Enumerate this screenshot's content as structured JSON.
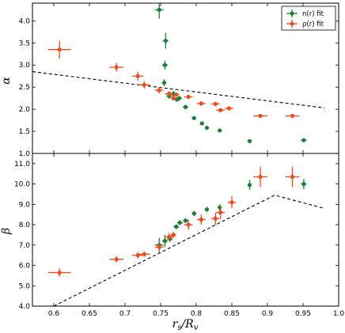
{
  "colors": {
    "n_fit": "#1e7f3a",
    "rho_fit": "#ee4b1f",
    "model": "#000000"
  },
  "chart_data": [
    {
      "type": "scatter",
      "panel": "alpha",
      "ylabel": "α",
      "xlim": [
        0.57,
        1.0
      ],
      "ylim": [
        1.0,
        4.4
      ],
      "grid": false,
      "legend_placement": "top-right",
      "x_ticks": [
        0.6,
        0.65,
        0.7,
        0.75,
        0.8,
        0.85,
        0.9,
        0.95,
        1.0
      ],
      "y_ticks": [
        {
          "value": 1.0,
          "label": "1.0"
        },
        {
          "value": 1.5,
          "label": "1.5"
        },
        {
          "value": 2.0,
          "label": "2.0"
        },
        {
          "value": 2.5,
          "label": "2.5"
        },
        {
          "value": 3.0,
          "label": "3.0"
        },
        {
          "value": 3.5,
          "label": "3.5"
        },
        {
          "value": 4.0,
          "label": "4.0"
        }
      ],
      "series": [
        {
          "name": "n(r) fit",
          "color_key": "n_fit",
          "points": [
            {
              "x": 0.748,
              "y": 4.25,
              "xerr": 0.006,
              "yerr": 0.2
            },
            {
              "x": 0.757,
              "y": 3.55,
              "xerr": 0.004,
              "yerr": 0.18
            },
            {
              "x": 0.756,
              "y": 3.0,
              "xerr": 0.004,
              "yerr": 0.1
            },
            {
              "x": 0.755,
              "y": 2.6,
              "xerr": 0.003,
              "yerr": 0.08
            },
            {
              "x": 0.762,
              "y": 2.3,
              "xerr": 0.004,
              "yerr": 0.06
            },
            {
              "x": 0.768,
              "y": 2.35,
              "xerr": 0.004,
              "yerr": 0.06
            },
            {
              "x": 0.773,
              "y": 2.22,
              "xerr": 0.004,
              "yerr": 0.05
            },
            {
              "x": 0.776,
              "y": 2.25,
              "xerr": 0.004,
              "yerr": 0.05
            },
            {
              "x": 0.785,
              "y": 2.05,
              "xerr": 0.004,
              "yerr": 0.05
            },
            {
              "x": 0.797,
              "y": 1.8,
              "xerr": 0.003,
              "yerr": 0.04
            },
            {
              "x": 0.808,
              "y": 1.68,
              "xerr": 0.003,
              "yerr": 0.04
            },
            {
              "x": 0.815,
              "y": 1.58,
              "xerr": 0.003,
              "yerr": 0.03
            },
            {
              "x": 0.833,
              "y": 1.52,
              "xerr": 0.003,
              "yerr": 0.03
            },
            {
              "x": 0.875,
              "y": 1.28,
              "xerr": 0.003,
              "yerr": 0.03
            },
            {
              "x": 0.951,
              "y": 1.3,
              "xerr": 0.004,
              "yerr": 0.03
            }
          ]
        },
        {
          "name": "ρ(r) fit",
          "color_key": "rho_fit",
          "points": [
            {
              "x": 0.608,
              "y": 3.35,
              "xerr": 0.016,
              "yerr": 0.2
            },
            {
              "x": 0.688,
              "y": 2.95,
              "xerr": 0.01,
              "yerr": 0.1
            },
            {
              "x": 0.718,
              "y": 2.75,
              "xerr": 0.008,
              "yerr": 0.1
            },
            {
              "x": 0.727,
              "y": 2.55,
              "xerr": 0.008,
              "yerr": 0.08
            },
            {
              "x": 0.748,
              "y": 2.43,
              "xerr": 0.006,
              "yerr": 0.07
            },
            {
              "x": 0.762,
              "y": 2.35,
              "xerr": 0.006,
              "yerr": 0.06
            },
            {
              "x": 0.768,
              "y": 2.25,
              "xerr": 0.004,
              "yerr": 0.05
            },
            {
              "x": 0.772,
              "y": 2.33,
              "xerr": 0.004,
              "yerr": 0.05
            },
            {
              "x": 0.789,
              "y": 2.28,
              "xerr": 0.006,
              "yerr": 0.05
            },
            {
              "x": 0.807,
              "y": 2.13,
              "xerr": 0.006,
              "yerr": 0.05
            },
            {
              "x": 0.827,
              "y": 2.12,
              "xerr": 0.006,
              "yerr": 0.05
            },
            {
              "x": 0.834,
              "y": 1.98,
              "xerr": 0.006,
              "yerr": 0.04
            },
            {
              "x": 0.846,
              "y": 2.02,
              "xerr": 0.006,
              "yerr": 0.04
            },
            {
              "x": 0.89,
              "y": 1.85,
              "xerr": 0.01,
              "yerr": 0.04
            },
            {
              "x": 0.935,
              "y": 1.85,
              "xerr": 0.01,
              "yerr": 0.04
            }
          ]
        }
      ],
      "lines": [
        {
          "color_key": "model",
          "style": "dashed",
          "points": [
            [
              0.57,
              2.85
            ],
            [
              0.98,
              2.03
            ]
          ]
        }
      ]
    },
    {
      "type": "scatter",
      "panel": "beta",
      "ylabel": "β",
      "xlabel": "r_s/R_v",
      "xlim": [
        0.57,
        1.0
      ],
      "ylim": [
        4.0,
        11.5
      ],
      "grid": false,
      "x_ticks": [
        {
          "value": 0.6,
          "label": "0.6"
        },
        {
          "value": 0.65,
          "label": "0.65"
        },
        {
          "value": 0.7,
          "label": "0.7"
        },
        {
          "value": 0.75,
          "label": "0.75"
        },
        {
          "value": 0.8,
          "label": "0.8"
        },
        {
          "value": 0.85,
          "label": "0.85"
        },
        {
          "value": 0.9,
          "label": "0.9"
        },
        {
          "value": 0.95,
          "label": "0.95"
        },
        {
          "value": 1.0,
          "label": "1.0"
        }
      ],
      "y_ticks": [
        {
          "value": 4.0,
          "label": "4.0"
        },
        {
          "value": 5.0,
          "label": "5.0"
        },
        {
          "value": 6.0,
          "label": "6.0"
        },
        {
          "value": 7.0,
          "label": "7.0"
        },
        {
          "value": 8.0,
          "label": "8.0"
        },
        {
          "value": 9.0,
          "label": "9.0"
        },
        {
          "value": 10.0,
          "label": "10.0"
        },
        {
          "value": 11.0,
          "label": "11.0"
        }
      ],
      "series": [
        {
          "name": "n(r) fit",
          "color_key": "n_fit",
          "points": [
            {
              "x": 0.748,
              "y": 7.0,
              "xerr": 0.006,
              "yerr": 0.35
            },
            {
              "x": 0.756,
              "y": 7.2,
              "xerr": 0.004,
              "yerr": 0.3
            },
            {
              "x": 0.763,
              "y": 7.3,
              "xerr": 0.004,
              "yerr": 0.15
            },
            {
              "x": 0.772,
              "y": 7.9,
              "xerr": 0.004,
              "yerr": 0.12
            },
            {
              "x": 0.777,
              "y": 8.1,
              "xerr": 0.004,
              "yerr": 0.12
            },
            {
              "x": 0.785,
              "y": 8.2,
              "xerr": 0.004,
              "yerr": 0.12
            },
            {
              "x": 0.797,
              "y": 8.55,
              "xerr": 0.003,
              "yerr": 0.12
            },
            {
              "x": 0.815,
              "y": 8.75,
              "xerr": 0.003,
              "yerr": 0.12
            },
            {
              "x": 0.833,
              "y": 8.85,
              "xerr": 0.003,
              "yerr": 0.15
            },
            {
              "x": 0.875,
              "y": 9.95,
              "xerr": 0.003,
              "yerr": 0.25
            },
            {
              "x": 0.951,
              "y": 10.0,
              "xerr": 0.004,
              "yerr": 0.25
            }
          ]
        },
        {
          "name": "ρ(r) fit",
          "color_key": "rho_fit",
          "points": [
            {
              "x": 0.608,
              "y": 5.65,
              "xerr": 0.016,
              "yerr": 0.2
            },
            {
              "x": 0.688,
              "y": 6.3,
              "xerr": 0.01,
              "yerr": 0.15
            },
            {
              "x": 0.718,
              "y": 6.5,
              "xerr": 0.008,
              "yerr": 0.15
            },
            {
              "x": 0.727,
              "y": 6.55,
              "xerr": 0.008,
              "yerr": 0.12
            },
            {
              "x": 0.748,
              "y": 6.9,
              "xerr": 0.006,
              "yerr": 0.2
            },
            {
              "x": 0.762,
              "y": 7.4,
              "xerr": 0.006,
              "yerr": 0.2
            },
            {
              "x": 0.768,
              "y": 7.5,
              "xerr": 0.004,
              "yerr": 0.15
            },
            {
              "x": 0.789,
              "y": 8.0,
              "xerr": 0.006,
              "yerr": 0.25
            },
            {
              "x": 0.807,
              "y": 8.25,
              "xerr": 0.006,
              "yerr": 0.25
            },
            {
              "x": 0.827,
              "y": 8.3,
              "xerr": 0.006,
              "yerr": 0.3
            },
            {
              "x": 0.834,
              "y": 8.6,
              "xerr": 0.006,
              "yerr": 0.3
            },
            {
              "x": 0.85,
              "y": 9.1,
              "xerr": 0.006,
              "yerr": 0.3
            },
            {
              "x": 0.89,
              "y": 10.35,
              "xerr": 0.01,
              "yerr": 0.5
            },
            {
              "x": 0.935,
              "y": 10.35,
              "xerr": 0.01,
              "yerr": 0.5
            }
          ]
        }
      ],
      "lines": [
        {
          "color_key": "model",
          "style": "dashed",
          "points": [
            [
              0.6,
              4.0
            ],
            [
              0.91,
              9.45
            ],
            [
              0.98,
              8.8
            ]
          ]
        }
      ]
    }
  ]
}
